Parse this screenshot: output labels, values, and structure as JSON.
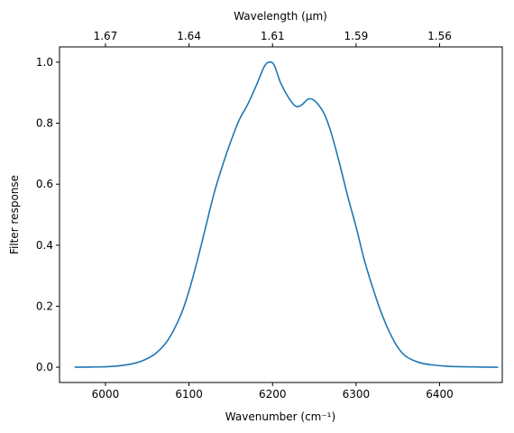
{
  "chart_data": {
    "type": "line",
    "xlabel": "Wavenumber (cm⁻¹)",
    "ylabel": "Filter response",
    "x2label": "Wavelength (μm)",
    "xlim": [
      5945,
      6475
    ],
    "ylim": [
      -0.05,
      1.05
    ],
    "grid": false,
    "x_ticks": [
      {
        "value": 6000,
        "label": "6000"
      },
      {
        "value": 6100,
        "label": "6100"
      },
      {
        "value": 6200,
        "label": "6200"
      },
      {
        "value": 6300,
        "label": "6300"
      },
      {
        "value": 6400,
        "label": "6400"
      }
    ],
    "y_ticks": [
      {
        "value": 0.0,
        "label": "0.0"
      },
      {
        "value": 0.2,
        "label": "0.2"
      },
      {
        "value": 0.4,
        "label": "0.4"
      },
      {
        "value": 0.6,
        "label": "0.6"
      },
      {
        "value": 0.8,
        "label": "0.8"
      },
      {
        "value": 1.0,
        "label": "1.0"
      }
    ],
    "x2_ticks": [
      {
        "value": 6000,
        "label": "1.67"
      },
      {
        "value": 6100,
        "label": "1.64"
      },
      {
        "value": 6200,
        "label": "1.61"
      },
      {
        "value": 6300,
        "label": "1.59"
      },
      {
        "value": 6400,
        "label": "1.56"
      }
    ],
    "series": [
      {
        "color": "#1f77b4",
        "points": [
          [
            5963,
            0.0
          ],
          [
            5990,
            0.001
          ],
          [
            6010,
            0.003
          ],
          [
            6030,
            0.01
          ],
          [
            6045,
            0.022
          ],
          [
            6060,
            0.045
          ],
          [
            6075,
            0.09
          ],
          [
            6090,
            0.17
          ],
          [
            6100,
            0.25
          ],
          [
            6110,
            0.35
          ],
          [
            6120,
            0.46
          ],
          [
            6130,
            0.57
          ],
          [
            6140,
            0.66
          ],
          [
            6150,
            0.74
          ],
          [
            6160,
            0.81
          ],
          [
            6170,
            0.86
          ],
          [
            6180,
            0.92
          ],
          [
            6190,
            0.985
          ],
          [
            6196,
            1.0
          ],
          [
            6202,
            0.99
          ],
          [
            6210,
            0.93
          ],
          [
            6220,
            0.88
          ],
          [
            6228,
            0.855
          ],
          [
            6235,
            0.86
          ],
          [
            6242,
            0.878
          ],
          [
            6248,
            0.878
          ],
          [
            6255,
            0.86
          ],
          [
            6262,
            0.83
          ],
          [
            6270,
            0.77
          ],
          [
            6280,
            0.67
          ],
          [
            6290,
            0.56
          ],
          [
            6300,
            0.46
          ],
          [
            6310,
            0.35
          ],
          [
            6320,
            0.26
          ],
          [
            6330,
            0.18
          ],
          [
            6340,
            0.115
          ],
          [
            6350,
            0.065
          ],
          [
            6360,
            0.035
          ],
          [
            6375,
            0.016
          ],
          [
            6390,
            0.008
          ],
          [
            6410,
            0.003
          ],
          [
            6440,
            0.001
          ],
          [
            6470,
            0.0
          ]
        ]
      }
    ]
  }
}
